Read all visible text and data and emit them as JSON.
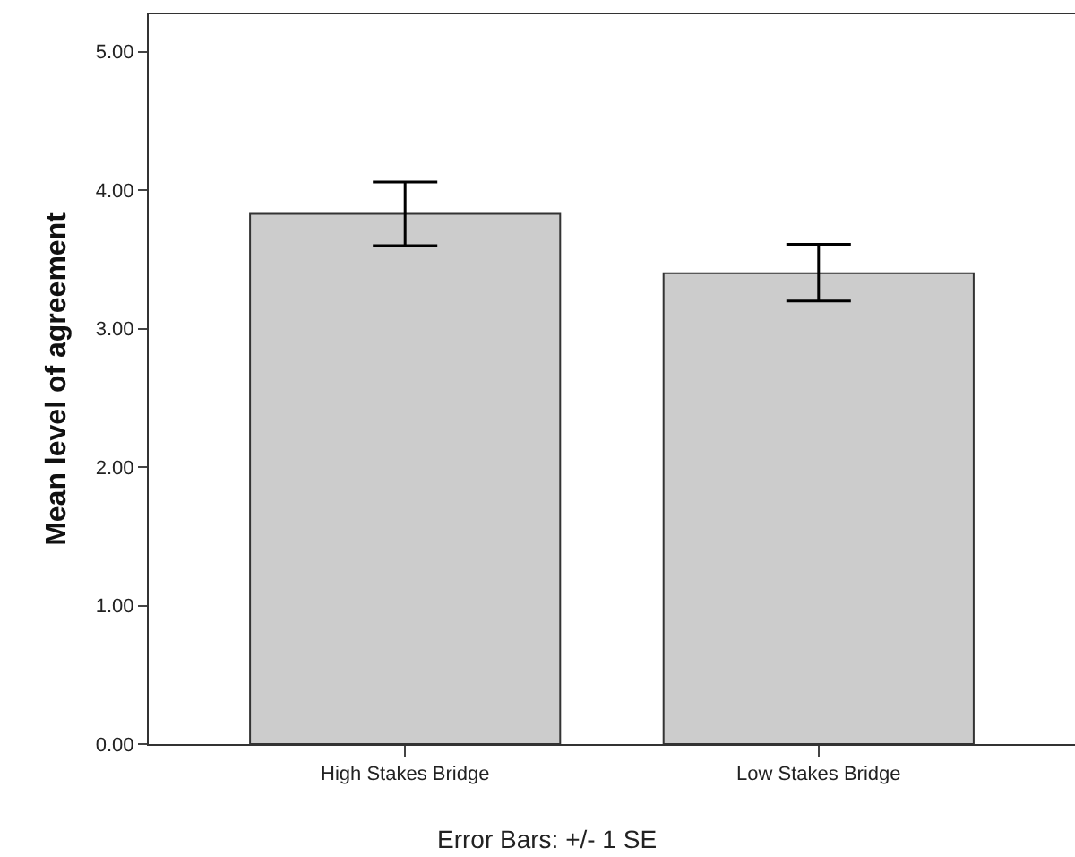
{
  "chart_data": {
    "type": "bar",
    "ylabel": "Mean level of agreement",
    "categories": [
      "High Stakes Bridge",
      "Low Stakes Bridge"
    ],
    "values": [
      3.83,
      3.4
    ],
    "errors": [
      [
        3.6,
        4.06
      ],
      [
        3.2,
        3.61
      ]
    ],
    "color": "#cccccc",
    "ylim": [
      0,
      5.27
    ],
    "yticks": [
      {
        "value": 0,
        "label": "0.00"
      },
      {
        "value": 1,
        "label": "1.00"
      },
      {
        "value": 2,
        "label": "2.00"
      },
      {
        "value": 3,
        "label": "3.00"
      },
      {
        "value": 4,
        "label": "4.00"
      },
      {
        "value": 5,
        "label": "5.00"
      }
    ],
    "grid": false,
    "annotations": [
      "Error Bars: +/- 1 SE"
    ]
  }
}
